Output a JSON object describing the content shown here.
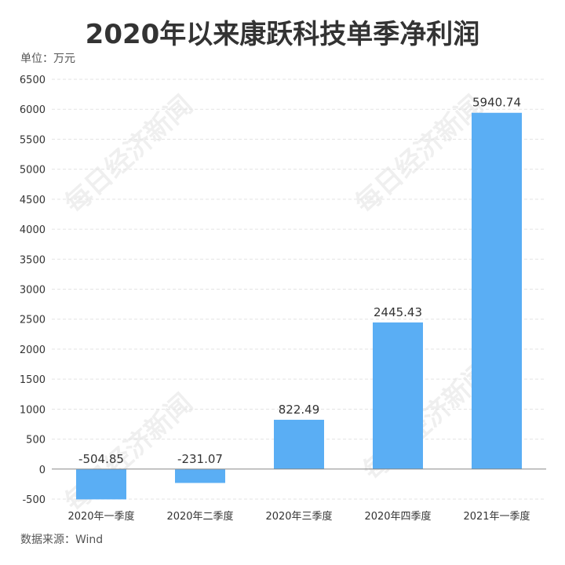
{
  "title": "2020年以来康跃科技单季净利润",
  "unit_label": "单位：万元",
  "source_label": "数据来源：Wind",
  "watermark": "每日经济新闻",
  "colors": {
    "bar": "#5aaef4",
    "text": "#333333",
    "grid": "#e3e3e3",
    "axis": "#888888"
  },
  "chart_data": {
    "type": "bar",
    "categories": [
      "2020年一季度",
      "2020年二季度",
      "2020年三季度",
      "2020年四季度",
      "2021年一季度"
    ],
    "values": [
      -504.85,
      -231.07,
      822.49,
      2445.43,
      5940.74
    ],
    "value_labels": [
      "-504.85",
      "-231.07",
      "822.49",
      "2445.43",
      "5940.74"
    ],
    "ylim": [
      -500,
      6500
    ],
    "yticks": [
      -500,
      0,
      500,
      1000,
      1500,
      2000,
      2500,
      3000,
      3500,
      4000,
      4500,
      5000,
      5500,
      6000,
      6500
    ],
    "grid": true,
    "title": "2020年以来康跃科技单季净利润",
    "xlabel": "",
    "ylabel": ""
  }
}
